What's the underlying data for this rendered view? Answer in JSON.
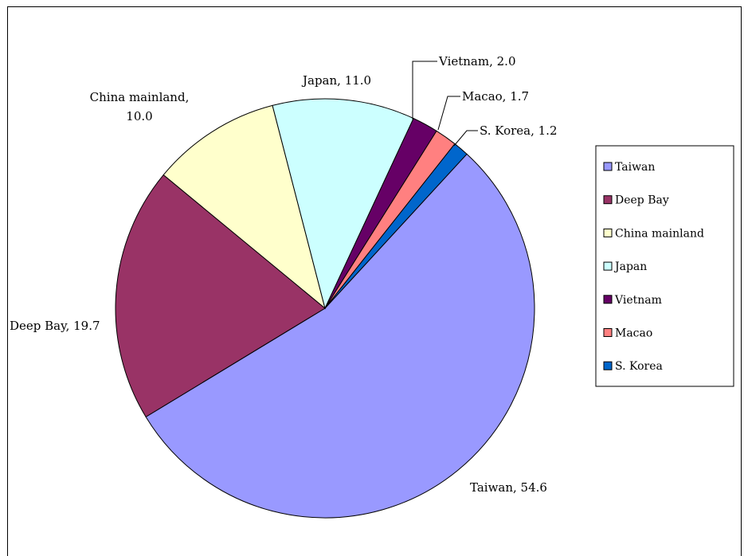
{
  "chart_data": {
    "type": "pie",
    "title": "",
    "slices": [
      {
        "label": "Taiwan",
        "value": 54.6,
        "color": "#9999FF",
        "label_text": "Taiwan, 54.6"
      },
      {
        "label": "Deep Bay",
        "value": 19.7,
        "color": "#993366",
        "label_text": "Deep Bay, 19.7"
      },
      {
        "label": "China mainland",
        "value": 10.0,
        "color": "#FFFFCC",
        "label_text": [
          "China mainland,",
          "10.0"
        ]
      },
      {
        "label": "Japan",
        "value": 11.0,
        "color": "#CCFFFF",
        "label_text": "Japan, 11.0"
      },
      {
        "label": "Vietnam",
        "value": 2.0,
        "color": "#660066",
        "label_text": "Vietnam, 2.0"
      },
      {
        "label": "Macao",
        "value": 1.7,
        "color": "#FF8080",
        "label_text": "Macao, 1.7"
      },
      {
        "label": "S. Korea",
        "value": 1.2,
        "color": "#0066CC",
        "label_text": "S. Korea, 1.2"
      }
    ],
    "legend": {
      "placement": "right",
      "entries": [
        "Taiwan",
        "Deep Bay",
        "China mainland",
        "Japan",
        "Vietnam",
        "Macao",
        "S. Korea"
      ]
    }
  }
}
